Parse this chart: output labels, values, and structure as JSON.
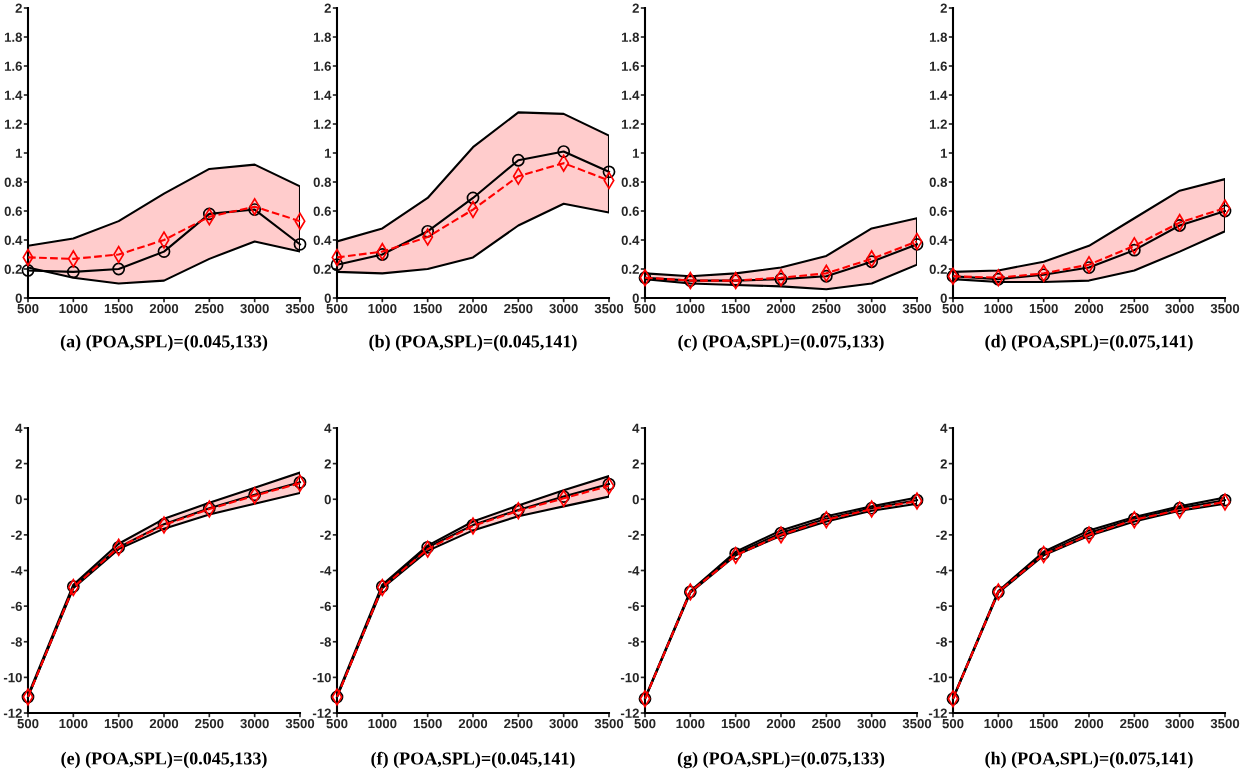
{
  "chart_data": [
    {
      "type": "line",
      "title": "(a) (POA,SPL)=(0.045,133)",
      "x": [
        500,
        1000,
        1500,
        2000,
        2500,
        3000,
        3500
      ],
      "xlim": [
        500,
        3500
      ],
      "xticks": [
        500,
        1000,
        1500,
        2000,
        2500,
        3000,
        3500
      ],
      "ylim": [
        0,
        2
      ],
      "yticks": [
        0,
        0.2,
        0.4,
        0.6,
        0.8,
        1,
        1.2,
        1.4,
        1.6,
        1.8,
        2
      ],
      "series": [
        {
          "color": "#000000",
          "marker": "circle",
          "line_style": "solid",
          "values": [
            0.19,
            0.18,
            0.2,
            0.32,
            0.58,
            0.61,
            0.37
          ],
          "lower": [
            0.21,
            0.14,
            0.1,
            0.12,
            0.27,
            0.39,
            0.32
          ],
          "upper": [
            0.36,
            0.41,
            0.53,
            0.72,
            0.89,
            0.92,
            0.77
          ]
        },
        {
          "color": "#ff0000",
          "marker": "diamond",
          "line_style": "dashed",
          "values": [
            0.28,
            0.27,
            0.3,
            0.4,
            0.56,
            0.63,
            0.53
          ]
        }
      ]
    },
    {
      "type": "line",
      "title": "(b) (POA,SPL)=(0.045,141)",
      "x": [
        500,
        1000,
        1500,
        2000,
        2500,
        3000,
        3500
      ],
      "xlim": [
        500,
        3500
      ],
      "xticks": [
        500,
        1000,
        1500,
        2000,
        2500,
        3000,
        3500
      ],
      "ylim": [
        0,
        2
      ],
      "yticks": [
        0,
        0.2,
        0.4,
        0.6,
        0.8,
        1,
        1.2,
        1.4,
        1.6,
        1.8,
        2
      ],
      "series": [
        {
          "color": "#000000",
          "marker": "circle",
          "line_style": "solid",
          "values": [
            0.23,
            0.3,
            0.46,
            0.69,
            0.95,
            1.01,
            0.87
          ],
          "lower": [
            0.18,
            0.17,
            0.2,
            0.28,
            0.5,
            0.65,
            0.59
          ],
          "upper": [
            0.39,
            0.48,
            0.69,
            1.04,
            1.28,
            1.27,
            1.12
          ]
        },
        {
          "color": "#ff0000",
          "marker": "diamond",
          "line_style": "dashed",
          "values": [
            0.28,
            0.32,
            0.42,
            0.61,
            0.84,
            0.93,
            0.81
          ]
        }
      ]
    },
    {
      "type": "line",
      "title": "(c) (POA,SPL)=(0.075,133)",
      "x": [
        500,
        1000,
        1500,
        2000,
        2500,
        3000,
        3500
      ],
      "xlim": [
        500,
        3500
      ],
      "xticks": [
        500,
        1000,
        1500,
        2000,
        2500,
        3000,
        3500
      ],
      "ylim": [
        0,
        2
      ],
      "yticks": [
        0,
        0.2,
        0.4,
        0.6,
        0.8,
        1,
        1.2,
        1.4,
        1.6,
        1.8,
        2
      ],
      "series": [
        {
          "color": "#000000",
          "marker": "circle",
          "line_style": "solid",
          "values": [
            0.14,
            0.12,
            0.12,
            0.13,
            0.15,
            0.25,
            0.37
          ],
          "lower": [
            0.13,
            0.1,
            0.09,
            0.08,
            0.06,
            0.1,
            0.23
          ],
          "upper": [
            0.17,
            0.15,
            0.17,
            0.21,
            0.29,
            0.48,
            0.55
          ]
        },
        {
          "color": "#ff0000",
          "marker": "diamond",
          "line_style": "dashed",
          "values": [
            0.14,
            0.12,
            0.12,
            0.14,
            0.17,
            0.27,
            0.39
          ]
        }
      ]
    },
    {
      "type": "line",
      "title": "(d) (POA,SPL)=(0.075,141)",
      "x": [
        500,
        1000,
        1500,
        2000,
        2500,
        3000,
        3500
      ],
      "xlim": [
        500,
        3500
      ],
      "xticks": [
        500,
        1000,
        1500,
        2000,
        2500,
        3000,
        3500
      ],
      "ylim": [
        0,
        2
      ],
      "yticks": [
        0,
        0.2,
        0.4,
        0.6,
        0.8,
        1,
        1.2,
        1.4,
        1.6,
        1.8,
        2
      ],
      "series": [
        {
          "color": "#000000",
          "marker": "circle",
          "line_style": "solid",
          "values": [
            0.15,
            0.13,
            0.16,
            0.21,
            0.33,
            0.5,
            0.6
          ],
          "lower": [
            0.13,
            0.11,
            0.11,
            0.12,
            0.19,
            0.32,
            0.46
          ],
          "upper": [
            0.18,
            0.19,
            0.25,
            0.36,
            0.55,
            0.74,
            0.82
          ]
        },
        {
          "color": "#ff0000",
          "marker": "diamond",
          "line_style": "dashed",
          "values": [
            0.15,
            0.14,
            0.17,
            0.23,
            0.36,
            0.52,
            0.62
          ]
        }
      ]
    },
    {
      "type": "line",
      "title": "(e) (POA,SPL)=(0.045,133)",
      "x": [
        500,
        1000,
        1500,
        2000,
        2500,
        3000,
        3500
      ],
      "xlim": [
        500,
        3500
      ],
      "xticks": [
        500,
        1000,
        1500,
        2000,
        2500,
        3000,
        3500
      ],
      "ylim": [
        -12,
        4
      ],
      "yticks": [
        -12,
        -10,
        -8,
        -6,
        -4,
        -2,
        0,
        2,
        4
      ],
      "series": [
        {
          "color": "#000000",
          "marker": "circle",
          "line_style": "solid",
          "values": [
            -11.1,
            -4.9,
            -2.7,
            -1.4,
            -0.5,
            0.25,
            0.95
          ],
          "lower": [
            -11.1,
            -5.0,
            -2.8,
            -1.65,
            -0.85,
            -0.25,
            0.35
          ],
          "upper": [
            -11.0,
            -4.8,
            -2.5,
            -1.1,
            -0.2,
            0.65,
            1.5
          ]
        },
        {
          "color": "#ff0000",
          "marker": "diamond",
          "line_style": "dashed",
          "values": [
            -11.1,
            -4.95,
            -2.7,
            -1.45,
            -0.55,
            0.2,
            0.9
          ]
        }
      ]
    },
    {
      "type": "line",
      "title": "(f) (POA,SPL)=(0.045,141)",
      "x": [
        500,
        1000,
        1500,
        2000,
        2500,
        3000,
        3500
      ],
      "xlim": [
        500,
        3500
      ],
      "xticks": [
        500,
        1000,
        1500,
        2000,
        2500,
        3000,
        3500
      ],
      "ylim": [
        -12,
        4
      ],
      "yticks": [
        -12,
        -10,
        -8,
        -6,
        -4,
        -2,
        0,
        2,
        4
      ],
      "series": [
        {
          "color": "#000000",
          "marker": "circle",
          "line_style": "solid",
          "values": [
            -11.1,
            -4.9,
            -2.7,
            -1.45,
            -0.6,
            0.15,
            0.85
          ],
          "lower": [
            -11.1,
            -5.0,
            -2.9,
            -1.75,
            -0.95,
            -0.4,
            0.15
          ],
          "upper": [
            -11.0,
            -4.8,
            -2.6,
            -1.25,
            -0.35,
            0.5,
            1.3
          ]
        },
        {
          "color": "#ff0000",
          "marker": "diamond",
          "line_style": "dashed",
          "values": [
            -11.1,
            -4.95,
            -2.8,
            -1.5,
            -0.65,
            0.05,
            0.75
          ]
        }
      ]
    },
    {
      "type": "line",
      "title": "(g) (POA,SPL)=(0.075,133)",
      "x": [
        500,
        1000,
        1500,
        2000,
        2500,
        3000,
        3500
      ],
      "xlim": [
        500,
        3500
      ],
      "xticks": [
        500,
        1000,
        1500,
        2000,
        2500,
        3000,
        3500
      ],
      "ylim": [
        -12,
        4
      ],
      "yticks": [
        -12,
        -10,
        -8,
        -6,
        -4,
        -2,
        0,
        2,
        4
      ],
      "series": [
        {
          "color": "#000000",
          "marker": "circle",
          "line_style": "solid",
          "values": [
            -11.2,
            -5.2,
            -3.05,
            -1.9,
            -1.1,
            -0.5,
            -0.05
          ],
          "lower": [
            -11.2,
            -5.25,
            -3.15,
            -2.05,
            -1.25,
            -0.65,
            -0.25
          ],
          "upper": [
            -11.15,
            -5.15,
            -2.95,
            -1.75,
            -0.95,
            -0.4,
            0.1
          ]
        },
        {
          "color": "#ff0000",
          "marker": "diamond",
          "line_style": "dashed",
          "values": [
            -11.2,
            -5.2,
            -3.15,
            -2.0,
            -1.15,
            -0.55,
            -0.1
          ]
        }
      ]
    },
    {
      "type": "line",
      "title": "(h) (POA,SPL)=(0.075,141)",
      "x": [
        500,
        1000,
        1500,
        2000,
        2500,
        3000,
        3500
      ],
      "xlim": [
        500,
        3500
      ],
      "xticks": [
        500,
        1000,
        1500,
        2000,
        2500,
        3000,
        3500
      ],
      "ylim": [
        -12,
        4
      ],
      "yticks": [
        -12,
        -10,
        -8,
        -6,
        -4,
        -2,
        0,
        2,
        4
      ],
      "series": [
        {
          "color": "#000000",
          "marker": "circle",
          "line_style": "solid",
          "values": [
            -11.2,
            -5.2,
            -3.05,
            -1.9,
            -1.1,
            -0.5,
            -0.05
          ],
          "lower": [
            -11.2,
            -5.25,
            -3.15,
            -2.05,
            -1.25,
            -0.65,
            -0.25
          ],
          "upper": [
            -11.15,
            -5.15,
            -2.95,
            -1.75,
            -1.0,
            -0.4,
            0.1
          ]
        },
        {
          "color": "#ff0000",
          "marker": "diamond",
          "line_style": "dashed",
          "values": [
            -11.2,
            -5.2,
            -3.1,
            -2.0,
            -1.15,
            -0.6,
            -0.15
          ]
        }
      ]
    }
  ]
}
